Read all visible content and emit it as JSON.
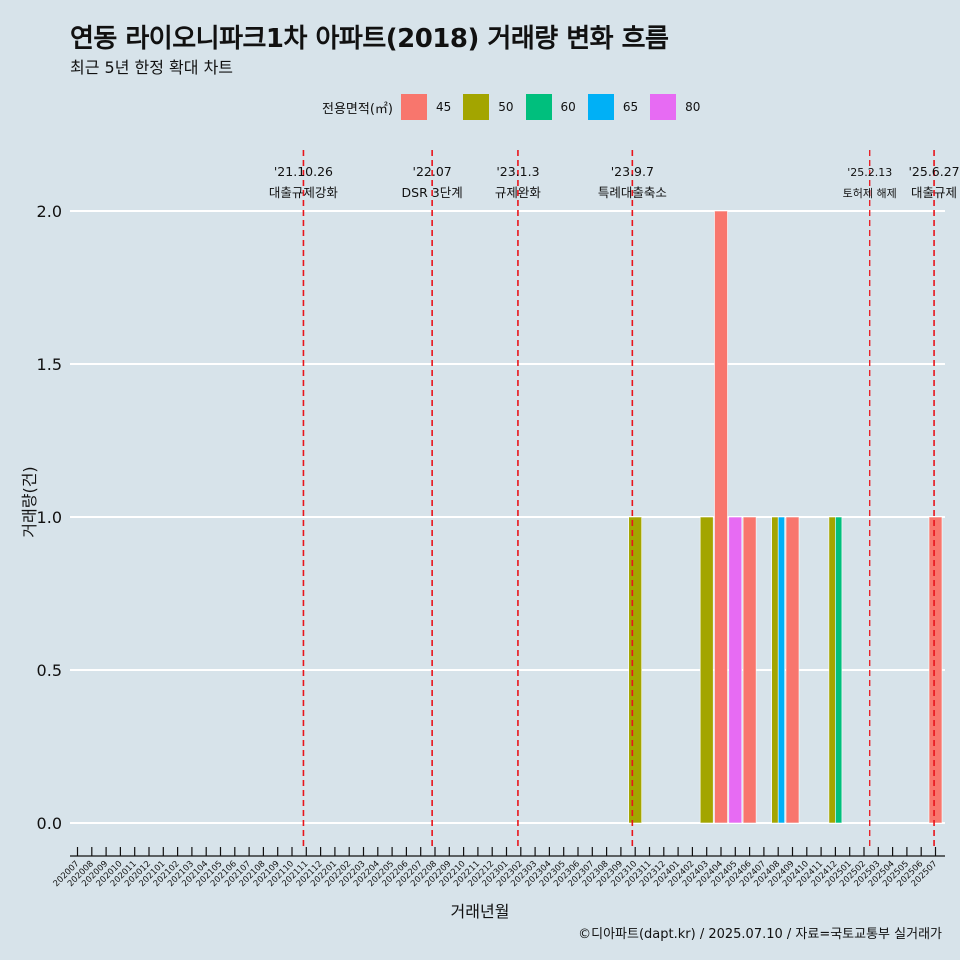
{
  "title": "연동 라이오니파크1차 아파트(2018) 거래량 변화 흐름",
  "subtitle": "최근 5년 한정 확대 차트",
  "caption": "©디아파트(dapt.kr) / 2025.07.10 / 자료=국토교통부 실거래가",
  "legend": {
    "title": "전용면적(㎡)",
    "items": [
      {
        "label": "45",
        "color": "#f8766d"
      },
      {
        "label": "50",
        "color": "#a3a500"
      },
      {
        "label": "60",
        "color": "#00bf7d"
      },
      {
        "label": "65",
        "color": "#00b0f6"
      },
      {
        "label": "80",
        "color": "#e76bf3"
      }
    ]
  },
  "chart_data": {
    "type": "bar",
    "xlabel": "거래년월",
    "ylabel": "거래량(건)",
    "ylim": [
      -0.08,
      2.2
    ],
    "yticks": [
      "0.0",
      "0.5",
      "1.0",
      "1.5",
      "2.0"
    ],
    "ytick_values": [
      0,
      0.5,
      1.0,
      1.5,
      2.0
    ],
    "categories": [
      "202007",
      "202008",
      "202009",
      "202010",
      "202011",
      "202012",
      "202101",
      "202102",
      "202103",
      "202104",
      "202105",
      "202106",
      "202107",
      "202108",
      "202109",
      "202110",
      "202111",
      "202112",
      "202201",
      "202202",
      "202203",
      "202204",
      "202205",
      "202206",
      "202207",
      "202208",
      "202209",
      "202210",
      "202211",
      "202212",
      "202301",
      "202302",
      "202303",
      "202304",
      "202305",
      "202306",
      "202307",
      "202308",
      "202309",
      "202310",
      "202311",
      "202312",
      "202401",
      "202402",
      "202403",
      "202404",
      "202405",
      "202406",
      "202407",
      "202408",
      "202409",
      "202410",
      "202411",
      "202412",
      "202501",
      "202502",
      "202503",
      "202504",
      "202505",
      "202506",
      "202507"
    ],
    "bars": [
      {
        "month": "202310",
        "series": "50",
        "value": 1
      },
      {
        "month": "202403",
        "series": "50",
        "value": 1
      },
      {
        "month": "202404",
        "series": "45",
        "value": 2
      },
      {
        "month": "202405",
        "series": "80",
        "value": 1
      },
      {
        "month": "202406",
        "series": "45",
        "value": 1
      },
      {
        "month": "202408",
        "series": "50",
        "value": 1
      },
      {
        "month": "202408",
        "series": "65",
        "value": 1
      },
      {
        "month": "202409",
        "series": "45",
        "value": 1
      },
      {
        "month": "202412",
        "series": "50",
        "value": 1
      },
      {
        "month": "202412",
        "series": "60",
        "value": 1
      },
      {
        "month": "202507",
        "series": "45",
        "value": 1
      }
    ],
    "events": [
      {
        "date": "'21.10.26",
        "label": "대출규제강화",
        "position": 15.8,
        "small": false
      },
      {
        "date": "'22.07",
        "label": "DSR 3단계",
        "position": 24.8,
        "small": false
      },
      {
        "date": "'23.1.3",
        "label": "규제완화",
        "position": 30.8,
        "small": false
      },
      {
        "date": "'23.9.7",
        "label": "특례대출축소",
        "position": 38.8,
        "small": false
      },
      {
        "date": "'25.2.13",
        "label": "토허제 해제",
        "position": 55.4,
        "small": true
      },
      {
        "date": "'25.6.27",
        "label": "대출규제",
        "position": 59.9,
        "small": false
      }
    ]
  }
}
